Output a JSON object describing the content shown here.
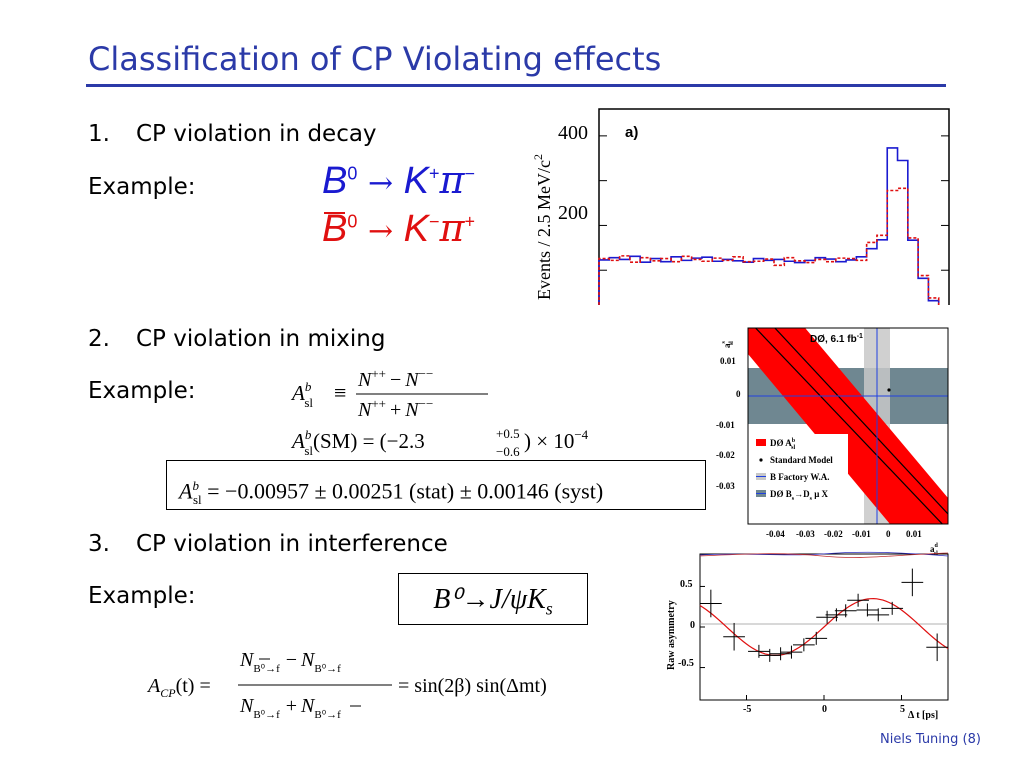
{
  "slide": {
    "title": "Classification of CP Violating effects",
    "footer": "Niels Tuning (8)"
  },
  "section1": {
    "number": "1.",
    "heading": "CP violation in decay",
    "example_label": "Example:",
    "reaction_b0": "B",
    "reaction_b0_sup": "0",
    "reaction_arrow": "→",
    "reaction_k": "K",
    "reaction_k_sup": "+",
    "reaction_pi": "π",
    "reaction_pi_sup": "−",
    "reaction2_b0": "B",
    "reaction2_b0_sup": "0",
    "reaction2_k_sup": "−",
    "reaction2_pi_sup": "+"
  },
  "section2": {
    "number": "2.",
    "heading": "CP violation in mixing",
    "example_label": "Example:",
    "asl_def_lhs": "A",
    "asl_sub": "sl",
    "asl_sup": "b",
    "asl_equiv": "≡",
    "asl_num": "N",
    "asl_num_sup1": "++",
    "asl_minus": "−",
    "asl_num_sup2": "−−",
    "asl_plus": "+",
    "asl_sm_text": "(SM) = (−2.3",
    "asl_sm_up": "+0.5",
    "asl_sm_down": "−0.6",
    "asl_sm_tail": ") × 10",
    "asl_sm_exp": "−4",
    "asl_measured": "= −0.00957 ± 0.00251 (stat) ± 0.00146 (syst)"
  },
  "section3": {
    "number": "3.",
    "heading": "CP violation in interference",
    "example_label": "Example:",
    "decay_box": "B⁰→J/ψK",
    "decay_box_sub": "s",
    "acp_lhs": "A",
    "acp_sub": "CP",
    "acp_arg": "(t) =",
    "acp_rhs": "= sin(2β) sin(Δmt)",
    "acp_N": "N",
    "acp_sub_bbar": "B⁰→f",
    "acp_sub_b": "B⁰→f",
    "acp_minus": "−",
    "acp_plus": "+"
  },
  "plot_a": {
    "panel_label": "a)",
    "ylabel": "Events / 2.5 MeV/c",
    "ylabel_sup": "2",
    "yticks": [
      "400",
      "200"
    ],
    "colors": {
      "blue": "#1a1ad0",
      "red": "#e01010"
    },
    "chart_data": {
      "type": "line",
      "ylabel": "Events / 2.5 MeV/c²",
      "ylim": [
        0,
        460
      ],
      "series": [
        {
          "values": [
            123,
            128,
            124,
            131,
            118,
            126,
            119,
            130,
            122,
            127,
            129,
            120,
            124,
            121,
            118,
            126,
            122,
            124,
            120,
            117,
            122,
            128,
            125,
            119,
            123,
            130,
            148,
            168,
            373,
            345,
            167,
            82,
            32,
            8
          ]
        },
        {
          "values": [
            126,
            122,
            132,
            118,
            128,
            121,
            126,
            119,
            131,
            124,
            120,
            127,
            122,
            130,
            119,
            120,
            125,
            111,
            128,
            121,
            117,
            124,
            119,
            127,
            126,
            122,
            162,
            178,
            278,
            283,
            172,
            88,
            38,
            10
          ]
        }
      ]
    }
  },
  "plot_d0": {
    "title": "DØ, 6.1 fb",
    "title_sup": "-1",
    "ylabel": "a",
    "ylabel_sup": "s",
    "ylabel_sub": "sl",
    "xlabel": "a",
    "xlabel_sup": "d",
    "xlabel_sub": "sl",
    "yticks": [
      "0.01",
      "0",
      "-0.01",
      "-0.02",
      "-0.03"
    ],
    "xticks": [
      "-0.04",
      "-0.03",
      "-0.02",
      "-0.01",
      "0",
      "0.01"
    ],
    "legend": [
      {
        "label": "DØ A",
        "sub": "sl",
        "sup": "b",
        "color": "#ff0000"
      },
      {
        "label": "Standard Model",
        "color": "#000000"
      },
      {
        "label": "B Factory W.A.",
        "color": "#c8c8c8"
      },
      {
        "label": "DØ B",
        "label_tail": "→D",
        "label_tail2": " μ X",
        "color": "#6f8791"
      }
    ]
  },
  "plot_asym": {
    "ylabel": "Raw asymmetry",
    "xlabel": "Δ t [ps]",
    "yticks": [
      "0.5",
      "0",
      "-0.5"
    ],
    "xticks": [
      "-5",
      "0",
      "5"
    ],
    "chart_data": {
      "type": "scatter",
      "xlabel": "Δ t [ps]",
      "ylabel": "Raw asymmetry",
      "xlim": [
        -8,
        8
      ],
      "ylim": [
        -0.9,
        0.9
      ],
      "x": [
        -7.3,
        -5.8,
        -4.2,
        -3.5,
        -2.8,
        -2.1,
        -1.3,
        -0.5,
        0.2,
        0.8,
        1.4,
        2.2,
        2.8,
        3.5,
        4.4,
        5.7,
        7.3
      ],
      "y": [
        0.29,
        -0.12,
        -0.3,
        -0.35,
        -0.33,
        -0.31,
        -0.22,
        -0.14,
        0.12,
        0.15,
        0.2,
        0.33,
        0.21,
        0.15,
        0.23,
        0.55,
        -0.25
      ],
      "fit": "sin"
    }
  }
}
